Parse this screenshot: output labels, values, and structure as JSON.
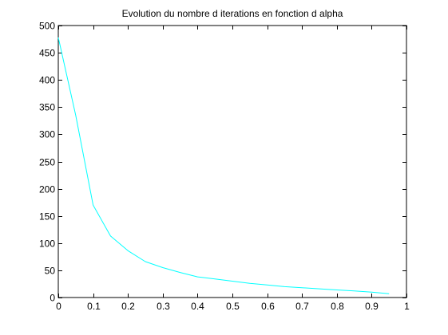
{
  "chart_data": {
    "type": "line",
    "title": "Evolution du nombre d iterations en fonction d alpha",
    "xlabel": "",
    "ylabel": "",
    "xlim": [
      0,
      1
    ],
    "ylim": [
      0,
      500
    ],
    "x_ticks": [
      "0",
      "0.1",
      "0.2",
      "0.3",
      "0.4",
      "0.5",
      "0.6",
      "0.7",
      "0.8",
      "0.9",
      "1"
    ],
    "y_ticks": [
      "0",
      "50",
      "100",
      "150",
      "200",
      "250",
      "300",
      "350",
      "400",
      "450",
      "500"
    ],
    "grid": false,
    "series": [
      {
        "color": "#00ffff",
        "x": [
          0.0,
          0.05,
          0.1,
          0.15,
          0.2,
          0.25,
          0.3,
          0.35,
          0.4,
          0.45,
          0.5,
          0.55,
          0.6,
          0.65,
          0.7,
          0.75,
          0.8,
          0.85,
          0.9,
          0.95
        ],
        "y": [
          478,
          335,
          170,
          113,
          86,
          66,
          55,
          46,
          38,
          34,
          30,
          26,
          23,
          20,
          18,
          16,
          14,
          12,
          10,
          7
        ]
      }
    ]
  }
}
